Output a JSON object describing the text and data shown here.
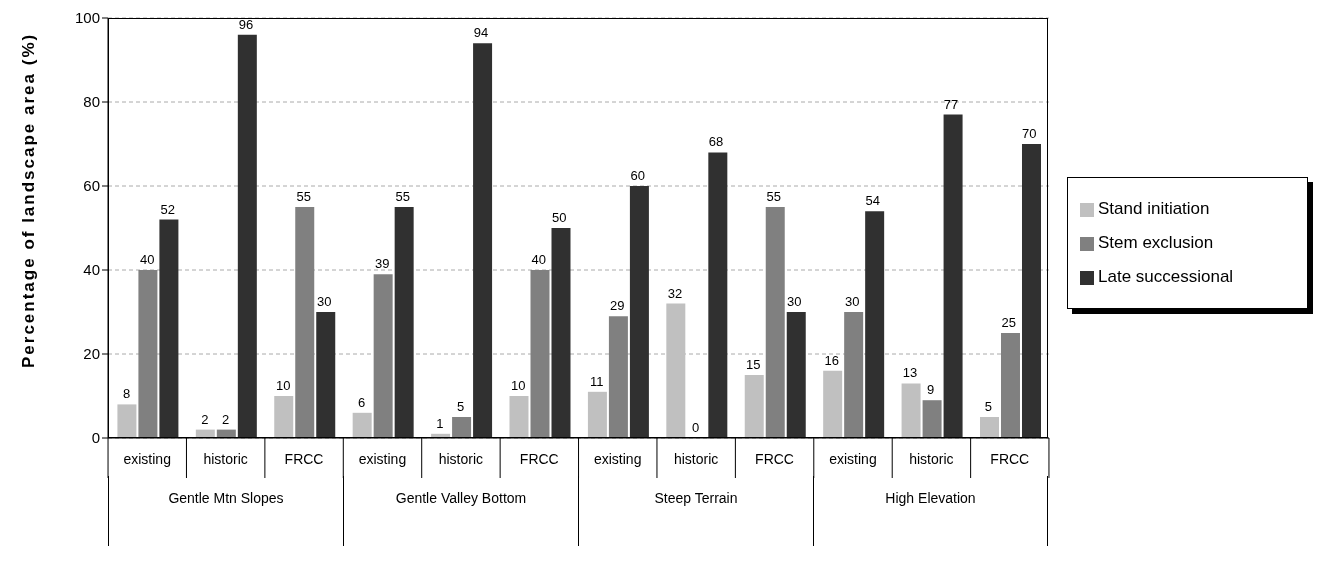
{
  "chart_data": {
    "type": "bar",
    "ylabel": "Percentage of landscape area (%)",
    "categories": [
      "existing",
      "historic",
      "FRCC",
      "existing",
      "historic",
      "FRCC",
      "existing",
      "historic",
      "FRCC",
      "existing",
      "historic",
      "FRCC"
    ],
    "annotations": [
      "Gentle Mtn Slopes",
      "Gentle Valley Bottom",
      "Steep Terrain",
      "High Elevation"
    ],
    "series": [
      {
        "name": "Stand initiation",
        "color": "#c0c0c0",
        "values": [
          8,
          2,
          10,
          6,
          1,
          10,
          11,
          32,
          15,
          16,
          13,
          5
        ]
      },
      {
        "name": "Stem exclusion",
        "color": "#808080",
        "values": [
          40,
          2,
          55,
          39,
          5,
          40,
          29,
          0,
          55,
          30,
          9,
          25
        ]
      },
      {
        "name": "Late successional",
        "color": "#303030",
        "values": [
          52,
          96,
          30,
          55,
          94,
          50,
          60,
          68,
          30,
          54,
          77,
          70
        ]
      }
    ],
    "ylim": [
      0,
      100
    ],
    "yticks": [
      0,
      20,
      40,
      60,
      80,
      100
    ],
    "grid": "y",
    "legend": "right",
    "data_labels": true
  }
}
